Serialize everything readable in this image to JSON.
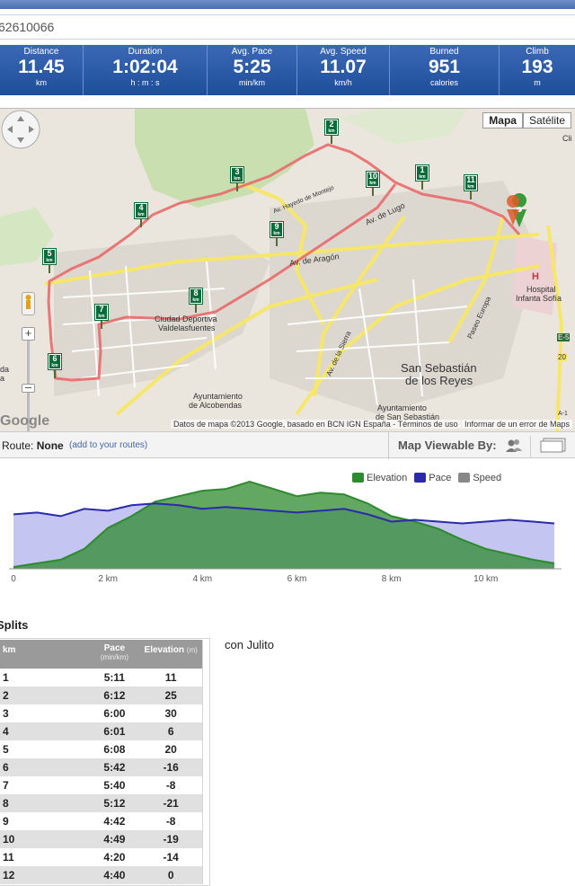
{
  "browser": {
    "url_text": "62610066"
  },
  "stats": [
    {
      "label": "Distance",
      "value": "11.45",
      "unit": "km"
    },
    {
      "label": "Duration",
      "value": "1:02:04",
      "unit": "h : m : s"
    },
    {
      "label": "Avg. Pace",
      "value": "5:25",
      "unit": "min/km"
    },
    {
      "label": "Avg. Speed",
      "value": "11.07",
      "unit": "km/h"
    },
    {
      "label": "Burned",
      "value": "951",
      "unit": "calories"
    },
    {
      "label": "Climb",
      "value": "193",
      "unit": "m"
    }
  ],
  "map": {
    "type_buttons": [
      "Mapa",
      "Satélite"
    ],
    "attribution": "Datos de mapa ©2013 Google, basado en BCN IGN España - Términos de uso",
    "report": "Informar de un error de Maps",
    "google_logo": "Google",
    "km_markers": [
      "1",
      "2",
      "3",
      "4",
      "5",
      "6",
      "7",
      "8",
      "9",
      "10",
      "11"
    ],
    "labels": {
      "ciudad": "Ciudad Deportiva",
      "valdelas": "Valdelasfuentes",
      "ayto_alco1": "Ayuntamiento",
      "ayto_alco2": "de Alcobendas",
      "ssr": "San Sebastián",
      "ssr2": "de los Reyes",
      "ayto_ss1": "Ayuntamiento",
      "ayto_ss2": "de San Sebastián",
      "hospital1": "Hospital",
      "hospital2": "Infanta Sofía",
      "hospital_h": "H",
      "aragon": "Av. de Aragón",
      "lugo": "Av. de Lugo",
      "sierra": "Av. de la Sierra",
      "europa": "Paseo Europa",
      "hayedo": "Av. Hayedo de Montejo",
      "cda": "da",
      "ca": "a",
      "road_e5": "E-5",
      "road_20": "20",
      "road_a1": "A-1",
      "cli": "Cli"
    }
  },
  "route": {
    "label": "Route:",
    "value": "None",
    "add_link": "(add to your routes)",
    "viewable": "Map Viewable By:"
  },
  "chart_data": {
    "type": "area",
    "legend": [
      "Elevation",
      "Pace",
      "Speed"
    ],
    "colors": {
      "elevation": "#3a9a3a",
      "pace": "#2a2aaa",
      "speed": "#888888"
    },
    "x_ticks": [
      "0",
      "2 km",
      "4 km",
      "6 km",
      "8 km",
      "10 km"
    ],
    "x_tick_values": [
      0,
      2,
      4,
      6,
      8,
      10
    ],
    "xlim": [
      0,
      11.45
    ],
    "elevation_note": "relative profile",
    "x": [
      0,
      0.5,
      1,
      1.5,
      2,
      2.5,
      3,
      3.5,
      4,
      4.5,
      5,
      5.5,
      6,
      6.5,
      7,
      7.5,
      8,
      8.5,
      9,
      9.5,
      10,
      10.5,
      11,
      11.45
    ],
    "elevation": [
      2,
      6,
      10,
      22,
      45,
      58,
      74,
      80,
      86,
      88,
      96,
      88,
      80,
      84,
      82,
      72,
      58,
      52,
      44,
      32,
      22,
      16,
      10,
      6
    ],
    "pace": [
      60,
      62,
      58,
      66,
      64,
      70,
      72,
      70,
      66,
      68,
      66,
      64,
      62,
      64,
      66,
      60,
      52,
      54,
      52,
      50,
      52,
      54,
      52,
      50
    ]
  },
  "splits": {
    "title": "Splits",
    "headers": {
      "km": "km",
      "pace": "Pace",
      "pace_unit": "(min/km)",
      "elevation": "Elevation",
      "elevation_unit": "(m)"
    },
    "rows": [
      {
        "km": "1",
        "pace": "5:11",
        "elevation": "11"
      },
      {
        "km": "2",
        "pace": "6:12",
        "elevation": "25"
      },
      {
        "km": "3",
        "pace": "6:00",
        "elevation": "30"
      },
      {
        "km": "4",
        "pace": "6:01",
        "elevation": "6"
      },
      {
        "km": "5",
        "pace": "6:08",
        "elevation": "20"
      },
      {
        "km": "6",
        "pace": "5:42",
        "elevation": "-16"
      },
      {
        "km": "7",
        "pace": "5:40",
        "elevation": "-8"
      },
      {
        "km": "8",
        "pace": "5:12",
        "elevation": "-21"
      },
      {
        "km": "9",
        "pace": "4:42",
        "elevation": "-8"
      },
      {
        "km": "10",
        "pace": "4:49",
        "elevation": "-19"
      },
      {
        "km": "11",
        "pace": "4:20",
        "elevation": "-14"
      },
      {
        "km": "12",
        "pace": "4:40",
        "elevation": "0"
      }
    ]
  },
  "notes": "con Julito"
}
